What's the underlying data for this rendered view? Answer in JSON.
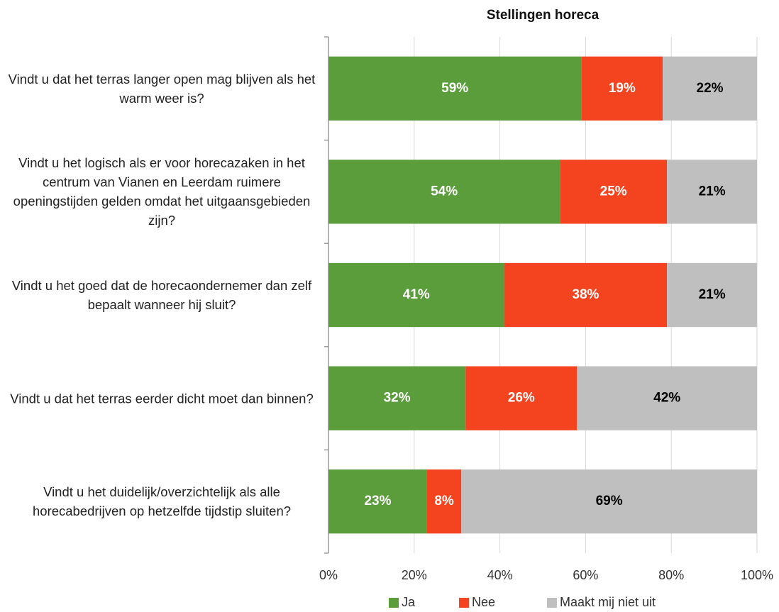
{
  "chart_data": {
    "type": "stacked_bar_horizontal",
    "title": "Stellingen horeca",
    "categories": [
      "Vindt u dat het terras langer open mag blijven als het warm weer is?",
      "Vindt u het logisch als er voor horecazaken in het centrum van Vianen en Leerdam ruimere openingstijden gelden omdat het uitgaansgebieden zijn?",
      "Vindt u het goed dat de horecaondernemer dan zelf bepaalt wanneer hij sluit?",
      "Vindt u dat het terras eerder dicht moet dan binnen?",
      "Vindt u het duidelijk/overzichtelijk als alle horecabedrijven op hetzelfde tijdstip sluiten?"
    ],
    "series": [
      {
        "name": "Ja",
        "color": "#5b9c3b",
        "label_color": "#ffffff",
        "values": [
          59,
          54,
          41,
          32,
          23
        ],
        "value_labels": [
          "59%",
          "54%",
          "41%",
          "32%",
          "23%"
        ]
      },
      {
        "name": "Nee",
        "color": "#f4431f",
        "label_color": "#ffffff",
        "values": [
          19,
          25,
          38,
          26,
          8
        ],
        "value_labels": [
          "19%",
          "25%",
          "38%",
          "26%",
          "8%"
        ]
      },
      {
        "name": "Maakt mij niet uit",
        "color": "#bfbfbf",
        "label_color": "#000000",
        "values": [
          22,
          21,
          21,
          42,
          69
        ],
        "value_labels": [
          "22%",
          "21%",
          "21%",
          "42%",
          "69%"
        ]
      }
    ],
    "xlim": [
      0,
      100
    ],
    "xticks": [
      {
        "value": 0,
        "label": "0%"
      },
      {
        "value": 20,
        "label": "20%"
      },
      {
        "value": 40,
        "label": "40%"
      },
      {
        "value": 60,
        "label": "60%"
      },
      {
        "value": 80,
        "label": "80%"
      },
      {
        "value": 100,
        "label": "100%"
      }
    ],
    "grid": true,
    "legend": "bottom"
  }
}
